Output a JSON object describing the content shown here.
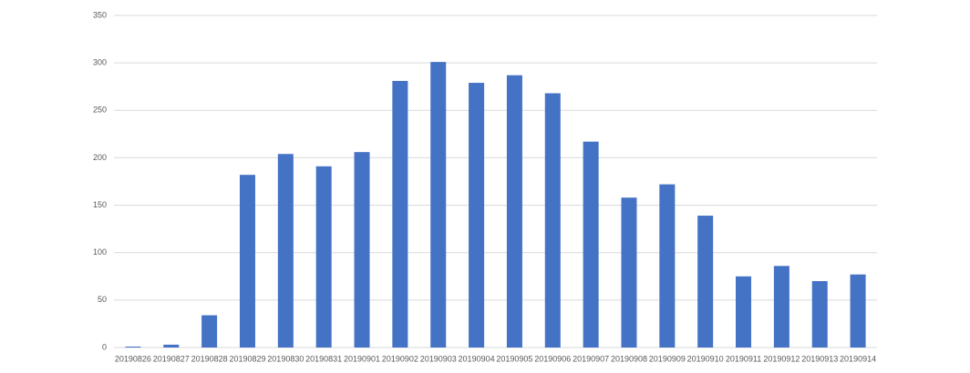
{
  "chart_data": {
    "type": "bar",
    "categories": [
      "20190826",
      "20190827",
      "20190828",
      "20190829",
      "20190830",
      "20190831",
      "20190901",
      "20190902",
      "20190903",
      "20190904",
      "20190905",
      "20190906",
      "20190907",
      "20190908",
      "20190909",
      "20190910",
      "20190911",
      "20190912",
      "20190913",
      "20190914"
    ],
    "values": [
      1,
      3,
      34,
      182,
      204,
      191,
      206,
      281,
      301,
      279,
      287,
      268,
      217,
      158,
      172,
      139,
      75,
      86,
      70,
      77
    ],
    "color": "#4472c4",
    "ylim": [
      0,
      350
    ],
    "yticks": [
      0,
      50,
      100,
      150,
      200,
      250,
      300,
      350
    ],
    "grid": true
  }
}
